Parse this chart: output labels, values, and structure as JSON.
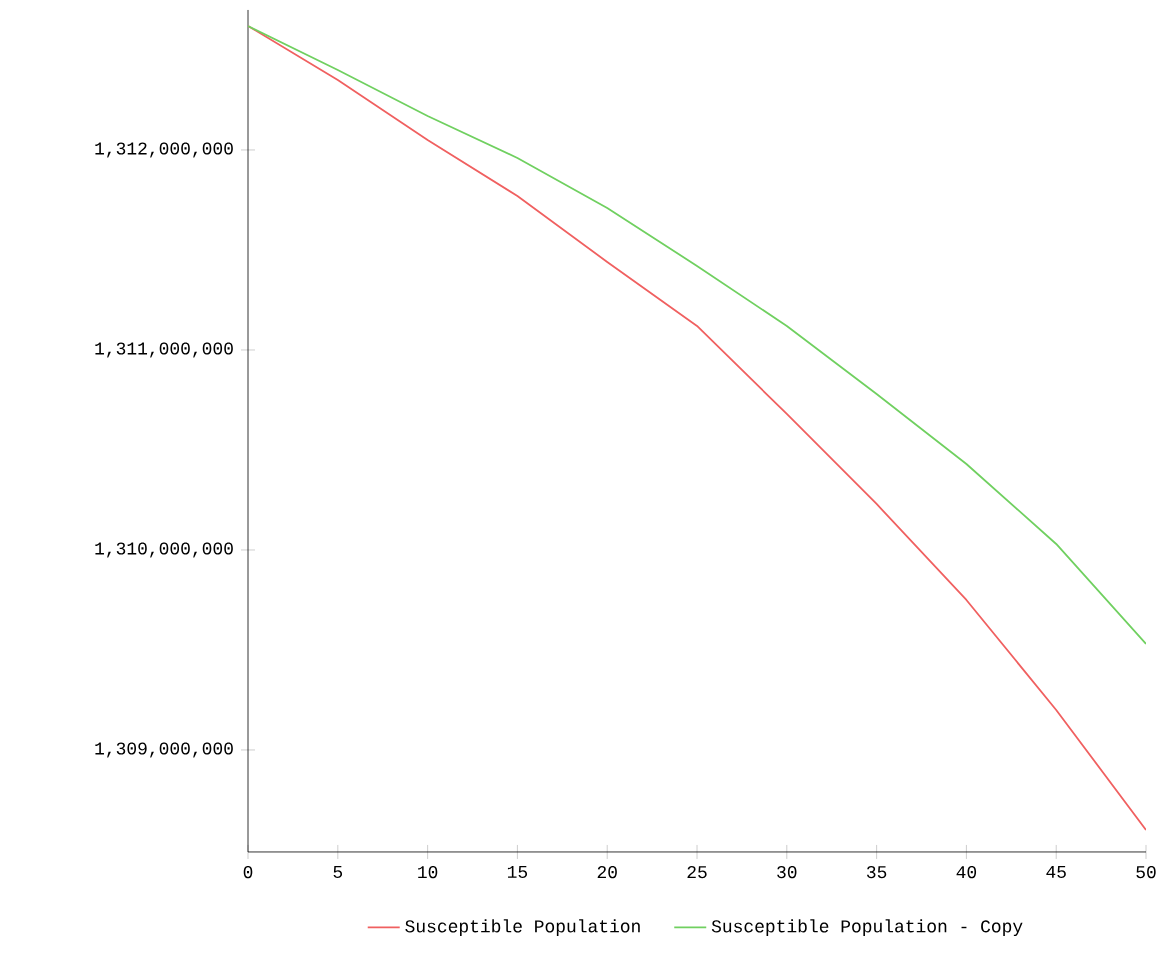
{
  "chart_data": {
    "type": "line",
    "x": [
      0,
      5,
      10,
      15,
      20,
      25,
      30,
      35,
      40,
      45,
      50
    ],
    "series": [
      {
        "name": "Susceptible Population",
        "color": "#f06060",
        "values": [
          1312620000,
          1312350000,
          1312050000,
          1311770000,
          1311440000,
          1311120000,
          1310680000,
          1310230000,
          1309750000,
          1309200000,
          1308600000
        ]
      },
      {
        "name": "Susceptible Population - Copy",
        "color": "#70d060",
        "values": [
          1312620000,
          1312400000,
          1312170000,
          1311960000,
          1311710000,
          1311420000,
          1311120000,
          1310780000,
          1310430000,
          1310030000,
          1309530000
        ]
      }
    ],
    "xlim": [
      0,
      50
    ],
    "ylim": [
      1308490000,
      1312700000
    ],
    "xticks": [
      0,
      5,
      10,
      15,
      20,
      25,
      30,
      35,
      40,
      45,
      50
    ],
    "yticks": [
      {
        "value": 1309000000,
        "label": "1,309,000,000"
      },
      {
        "value": 1310000000,
        "label": "1,310,000,000"
      },
      {
        "value": 1311000000,
        "label": "1,311,000,000"
      },
      {
        "value": 1312000000,
        "label": "1,312,000,000"
      }
    ],
    "grid": false,
    "legend": "bottom",
    "marker": "none",
    "line_style": "solid"
  }
}
